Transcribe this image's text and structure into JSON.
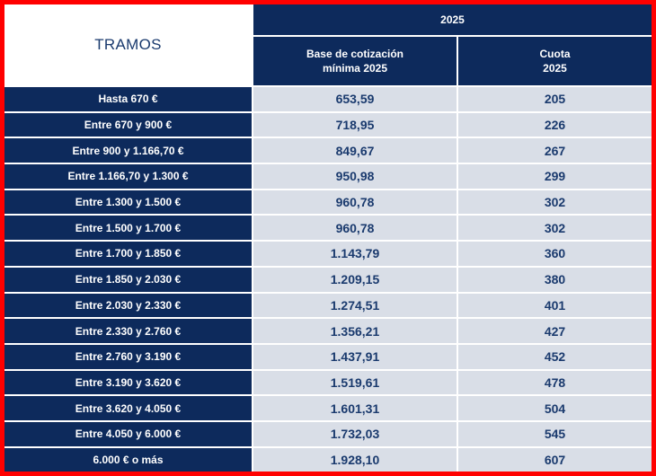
{
  "header": {
    "tramos": "TRAMOS",
    "year": "2025",
    "base_label": "Base de cotización\nmínima 2025",
    "cuota_label": "Cuota\n2025"
  },
  "rows": [
    {
      "tramo": "Hasta 670 €",
      "base": "653,59",
      "cuota": "205"
    },
    {
      "tramo": "Entre 670 y 900 €",
      "base": "718,95",
      "cuota": "226"
    },
    {
      "tramo": "Entre 900 y 1.166,70 €",
      "base": "849,67",
      "cuota": "267"
    },
    {
      "tramo": "Entre 1.166,70 y 1.300 €",
      "base": "950,98",
      "cuota": "299"
    },
    {
      "tramo": "Entre 1.300 y 1.500 €",
      "base": "960,78",
      "cuota": "302"
    },
    {
      "tramo": "Entre 1.500 y 1.700 €",
      "base": "960,78",
      "cuota": "302"
    },
    {
      "tramo": "Entre 1.700 y 1.850 €",
      "base": "1.143,79",
      "cuota": "360"
    },
    {
      "tramo": "Entre 1.850 y 2.030 €",
      "base": "1.209,15",
      "cuota": "380"
    },
    {
      "tramo": "Entre 2.030 y 2.330 €",
      "base": "1.274,51",
      "cuota": "401"
    },
    {
      "tramo": "Entre 2.330 y 2.760 €",
      "base": "1.356,21",
      "cuota": "427"
    },
    {
      "tramo": "Entre 2.760 y 3.190 €",
      "base": "1.437,91",
      "cuota": "452"
    },
    {
      "tramo": "Entre 3.190 y 3.620 €",
      "base": "1.519,61",
      "cuota": "478"
    },
    {
      "tramo": "Entre 3.620 y 4.050 €",
      "base": "1.601,31",
      "cuota": "504"
    },
    {
      "tramo": "Entre 4.050 y 6.000 €",
      "base": "1.732,03",
      "cuota": "545"
    },
    {
      "tramo": "6.000 € o más",
      "base": "1.928,10",
      "cuota": "607"
    }
  ]
}
